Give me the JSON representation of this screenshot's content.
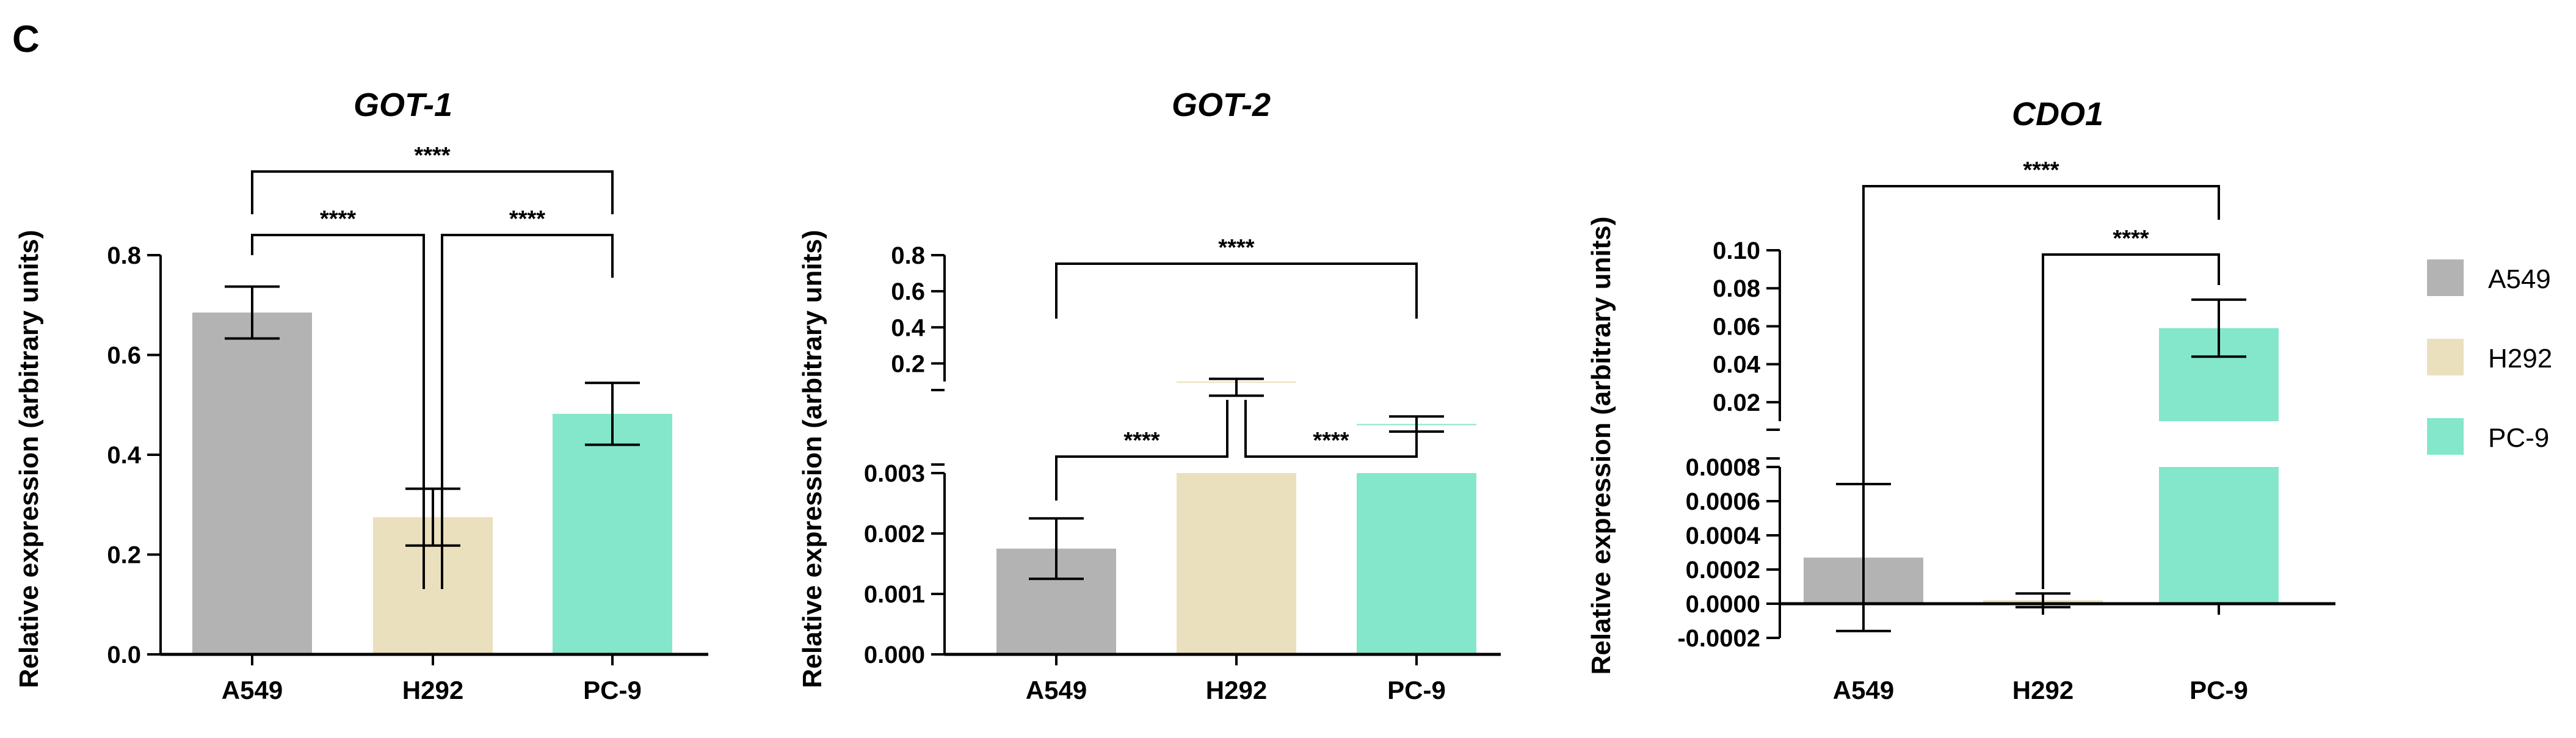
{
  "panel_label": "C",
  "colors": {
    "A549": "#b3b3b3",
    "H292": "#ebe0bd",
    "PC-9": "#84e6cb",
    "axis": "#000000"
  },
  "legend": {
    "items": [
      {
        "label": "A549",
        "color": "#b3b3b3"
      },
      {
        "label": "H292",
        "color": "#ebe0bd"
      },
      {
        "label": "PC-9",
        "color": "#84e6cb"
      }
    ],
    "placement": "right"
  },
  "chart_data": [
    {
      "type": "bar",
      "title": "GOT-1",
      "ylabel": "Relative expression (arbitrary units)",
      "xlabel": "",
      "categories": [
        "A549",
        "H292",
        "PC-9"
      ],
      "values": [
        0.685,
        0.275,
        0.482
      ],
      "error": [
        0.052,
        0.057,
        0.062
      ],
      "ylim": [
        0,
        0.8
      ],
      "yticks": [
        "0.0",
        "0.2",
        "0.4",
        "0.6",
        "0.8"
      ],
      "significance": [
        {
          "from": "A549",
          "to": "PC-9",
          "label": "****"
        },
        {
          "from": "A549",
          "to": "H292",
          "label": "****"
        },
        {
          "from": "H292",
          "to": "PC-9",
          "label": "****"
        }
      ]
    },
    {
      "type": "bar",
      "title": "GOT-2",
      "ylabel": "Relative expression (arbitrary units)",
      "xlabel": "",
      "broken_axis": true,
      "categories": [
        "A549",
        "H292",
        "PC-9"
      ],
      "values": [
        0.00175,
        0.1,
        0.055
      ],
      "error": [
        0.0005,
        0.015,
        0.008
      ],
      "ylim_lower": [
        0,
        0.003
      ],
      "ylim_upper": [
        0.1,
        0.8
      ],
      "yticks_lower": [
        "0.000",
        "0.001",
        "0.002",
        "0.003"
      ],
      "yticks_upper": [
        "0.2",
        "0.4",
        "0.6",
        "0.8"
      ],
      "significance": [
        {
          "from": "A549",
          "to": "PC-9",
          "label": "****"
        },
        {
          "from": "A549",
          "to": "H292",
          "label": "****"
        },
        {
          "from": "H292",
          "to": "PC-9",
          "label": "****"
        }
      ]
    },
    {
      "type": "bar",
      "title": "CDO1",
      "ylabel": "Relative expression  (arbitrary units)",
      "xlabel": "",
      "broken_axis": true,
      "categories": [
        "A549",
        "H292",
        "PC-9"
      ],
      "values": [
        0.00027,
        2e-05,
        0.059
      ],
      "error": [
        0.00043,
        4e-05,
        0.015
      ],
      "ylim_lower": [
        -0.0002,
        0.0008
      ],
      "ylim_upper": [
        0.01,
        0.1
      ],
      "yticks_lower": [
        "-0.0002",
        "0.0000",
        "0.0002",
        "0.0004",
        "0.0006",
        "0.0008"
      ],
      "yticks_upper": [
        "0.02",
        "0.04",
        "0.06",
        "0.08",
        "0.10"
      ],
      "significance": [
        {
          "from": "A549",
          "to": "PC-9",
          "label": "****"
        },
        {
          "from": "H292",
          "to": "PC-9",
          "label": "****"
        }
      ]
    }
  ]
}
